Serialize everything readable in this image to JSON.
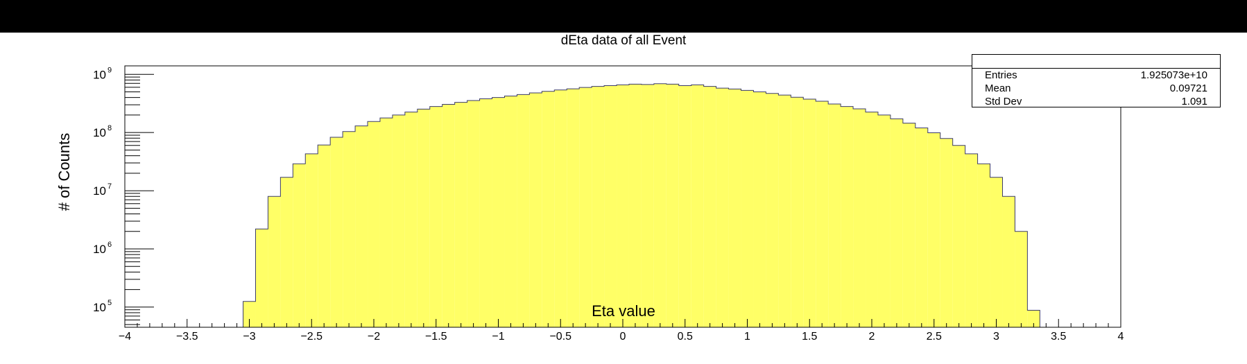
{
  "chart_data": {
    "type": "bar",
    "title": "dEta data of all Event",
    "xlabel": "Eta value",
    "ylabel": "# of Counts",
    "xlim": [
      -4,
      4
    ],
    "ylim": [
      45000,
      1400000000
    ],
    "log_y": true,
    "x_ticks": [
      -4,
      -3.5,
      -3,
      -2.5,
      -2,
      -1.5,
      -1,
      -0.5,
      0,
      0.5,
      1,
      1.5,
      2,
      2.5,
      3,
      3.5,
      4
    ],
    "x_tick_labels": [
      "−4",
      "−3.5",
      "−3",
      "−2.5",
      "−2",
      "−1.5",
      "−1",
      "−0.5",
      "0",
      "0.5",
      "1",
      "1.5",
      "2",
      "2.5",
      "3",
      "3.5",
      "4"
    ],
    "y_ticks": [
      100000,
      1000000,
      10000000,
      100000000,
      1000000000
    ],
    "y_tick_labels": [
      {
        "base": "10",
        "exp": "5"
      },
      {
        "base": "10",
        "exp": "6"
      },
      {
        "base": "10",
        "exp": "7"
      },
      {
        "base": "10",
        "exp": "8"
      },
      {
        "base": "10",
        "exp": "9"
      }
    ],
    "fill_color": "#ffff66",
    "line_color": "#3a3a6a",
    "bin_width": 0.1,
    "bins_start": -3.05,
    "values": [
      125000,
      2200000,
      8000000,
      17000000,
      29000000,
      43000000,
      61000000,
      83000000,
      104000000,
      130000000,
      155000000,
      178000000,
      200000000,
      225000000,
      253000000,
      280000000,
      305000000,
      330000000,
      355000000,
      380000000,
      400000000,
      425000000,
      450000000,
      480000000,
      510000000,
      540000000,
      565000000,
      595000000,
      620000000,
      640000000,
      660000000,
      680000000,
      670000000,
      690000000,
      680000000,
      640000000,
      660000000,
      620000000,
      580000000,
      560000000,
      530000000,
      500000000,
      470000000,
      440000000,
      405000000,
      375000000,
      345000000,
      310000000,
      280000000,
      255000000,
      225000000,
      200000000,
      172000000,
      145000000,
      120000000,
      99000000,
      79000000,
      60000000,
      43000000,
      29000000,
      17000000,
      8000000,
      2000000,
      88000
    ]
  },
  "stats": {
    "rows": [
      {
        "label": "Entries",
        "value": "1.925073e+10"
      },
      {
        "label": "Mean",
        "value": "0.09721"
      },
      {
        "label": "Std Dev",
        "value": "1.091"
      }
    ]
  }
}
